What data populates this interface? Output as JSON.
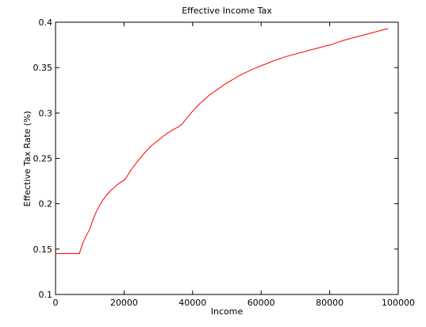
{
  "chart_data": {
    "type": "line",
    "title": "Effective Income Tax",
    "xlabel": "Income",
    "ylabel": "Effective Tax Rate (%)",
    "xlim": [
      0,
      100000
    ],
    "ylim": [
      0.1,
      0.4
    ],
    "x_ticks": [
      0,
      20000,
      40000,
      60000,
      80000,
      100000
    ],
    "x_tick_labels": [
      "0",
      "20000",
      "40000",
      "60000",
      "80000",
      "100000"
    ],
    "y_ticks": [
      0.1,
      0.15,
      0.2,
      0.25,
      0.3,
      0.35,
      0.4
    ],
    "y_tick_labels": [
      "0.1",
      "0.15",
      "0.2",
      "0.25",
      "0.3",
      "0.35",
      "0.4"
    ],
    "grid": false,
    "legend": "none",
    "series": [
      {
        "color": "#ff0000",
        "x": [
          0,
          7000,
          7200,
          8000,
          9000,
          10000,
          11000,
          12000,
          13000,
          14000,
          15000,
          16000,
          18000,
          20000,
          20500,
          22000,
          24000,
          26000,
          28000,
          30000,
          32000,
          34000,
          36000,
          37000,
          38000,
          40000,
          42000,
          45000,
          48000,
          50000,
          54000,
          58000,
          60000,
          64000,
          68000,
          72000,
          76000,
          80000,
          81000,
          84000,
          88000,
          92000,
          96000,
          97000
        ],
        "y": [
          0.145,
          0.145,
          0.148,
          0.157,
          0.165,
          0.172,
          0.183,
          0.192,
          0.199,
          0.205,
          0.21,
          0.214,
          0.221,
          0.226,
          0.228,
          0.237,
          0.247,
          0.256,
          0.264,
          0.27,
          0.276,
          0.281,
          0.285,
          0.288,
          0.293,
          0.302,
          0.31,
          0.32,
          0.328,
          0.333,
          0.342,
          0.349,
          0.352,
          0.358,
          0.363,
          0.367,
          0.371,
          0.375,
          0.376,
          0.38,
          0.384,
          0.388,
          0.392,
          0.393
        ]
      }
    ]
  }
}
